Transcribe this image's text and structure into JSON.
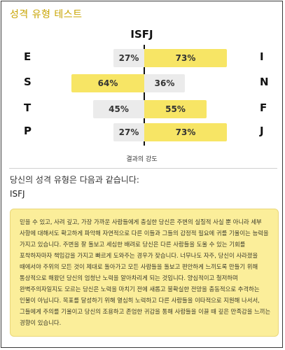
{
  "page": {
    "title": "성격 유형 테스트"
  },
  "result": {
    "type": "ISFJ",
    "axis_caption": "결과의 강도",
    "intro": "당신의 성격 유형은 다음과 같습니다:",
    "type_label": "ISFJ",
    "description": "믿을 수 있고, 사려 깊고, 가장 가까운 사람들에게 충실한 당신은 주변의 실질적 사실 뿐 아니라 세부 사항에 대해서도 확고하게 파악해 자연적으로 다른 이들과 그들의 감정적 필요에 귀를 기울이는 능력을 가지고 있습니다. 주변을 잘 돌보고 세심한 배려로 당신은 다른 사람들을 도울 수 있는 기회를 포착하자마자 책임감을 가지고 빠르게 도와주는 경우가 잦습니다. 너무나도 자주, 당신이 사라졌을 때에서야 주위의 모든 것이 제대로 돌아가고 모든 사람들을 돌보고 편안하게 느끼도록 만들기 위해 통상적으로 해왔던 당신의 엄청난 노력을 알아차리게 되는 것입니다. 양심적이고 철저하며 완벽주의자일지도 모르는 당신은 노력을 마치기 전에 새롭고 불확실한 전망을 충동적으로 추격하는 인물이 아닙니다. 목표를 달성하기 위해 열심히 노력하고 다른 사람들을 이타적으로 지원해 나서서, 그들에게 주의를 기울이고 당신의 조용하고 존엄한 귀감을 통해 사람들을 이끌 때 깊은 만족감을 느끼는 경향이 있습니다."
  },
  "dimensions": [
    {
      "left_letter": "E",
      "left_value": 27,
      "left_label": "27%",
      "right_letter": "I",
      "right_value": 73,
      "right_label": "73%",
      "dominant": "right"
    },
    {
      "left_letter": "S",
      "left_value": 64,
      "left_label": "64%",
      "right_letter": "N",
      "right_value": 36,
      "right_label": "36%",
      "dominant": "left"
    },
    {
      "left_letter": "T",
      "left_value": 45,
      "left_label": "45%",
      "right_letter": "F",
      "right_value": 55,
      "right_label": "55%",
      "dominant": "right"
    },
    {
      "left_letter": "P",
      "left_value": 27,
      "left_label": "27%",
      "right_letter": "J",
      "right_value": 73,
      "right_label": "73%",
      "dominant": "right"
    }
  ],
  "colors": {
    "accent": "#c8a400",
    "dominant_bar": "#f7e565",
    "other_bar": "#ebebeb",
    "description_bg": "#fbee9a"
  }
}
